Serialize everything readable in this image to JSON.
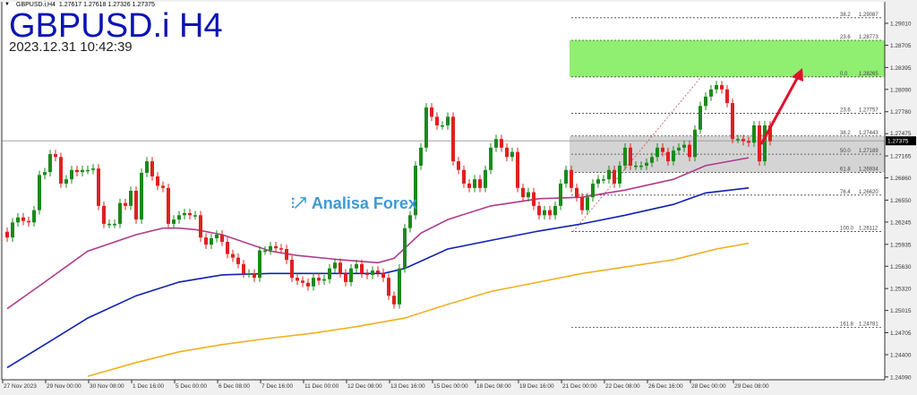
{
  "header": {
    "symbol_line": "GBPUSD.i,H4",
    "ohlc": "1.27617 1.27618 1.27326 1.27375",
    "big_title": "GBPUSD.i H4",
    "datetime": "2023.12.31 10:42:39"
  },
  "watermark": {
    "text": "Analisa Forex",
    "icon": "chart-growth-icon"
  },
  "chart_data": {
    "type": "candlestick",
    "symbol": "GBPUSD.i",
    "timeframe": "H4",
    "ylim": [
      1.2409,
      1.2901
    ],
    "price_axis_labels": [
      "1.29010",
      "1.28705",
      "1.28395",
      "1.28090",
      "1.27780",
      "1.27475",
      "1.27165",
      "1.26860",
      "1.26550",
      "1.26245",
      "1.25935",
      "1.25630",
      "1.25320",
      "1.25015",
      "1.24705",
      "1.24400",
      "1.24090"
    ],
    "time_axis_labels": [
      "27 Nov 2023",
      "29 Nov 00:00",
      "30 Nov 08:00",
      "1 Dec 16:00",
      "5 Dec 00:00",
      "6 Dec 08:00",
      "7 Dec 16:00",
      "11 Dec 00:00",
      "12 Dec 08:00",
      "13 Dec 16:00",
      "15 Dec 00:00",
      "18 Dec 08:00",
      "19 Dec 16:00",
      "21 Dec 00:00",
      "22 Dec 08:00",
      "26 Dec 16:00",
      "28 Dec 00:00",
      "29 Dec 08:00"
    ],
    "current_price": "1.27375",
    "closes": [
      1.2603,
      1.2624,
      1.2631,
      1.2626,
      1.2624,
      1.2641,
      1.269,
      1.2694,
      1.2719,
      1.2715,
      1.2678,
      1.2684,
      1.2697,
      1.2694,
      1.2697,
      1.2697,
      1.2699,
      1.2647,
      1.2622,
      1.2622,
      1.2622,
      1.2651,
      1.2647,
      1.2668,
      1.2628,
      1.2693,
      1.2709,
      1.2688,
      1.2675,
      1.2672,
      1.2622,
      1.2628,
      1.2634,
      1.2637,
      1.2634,
      1.2634,
      1.2603,
      1.2593,
      1.2602,
      1.2607,
      1.2597,
      1.258,
      1.2575,
      1.2566,
      1.2553,
      1.2553,
      1.2547,
      1.2585,
      1.2585,
      1.2591,
      1.2588,
      1.2587,
      1.2572,
      1.2547,
      1.2543,
      1.254,
      1.2535,
      1.2547,
      1.2543,
      1.2545,
      1.256,
      1.2568,
      1.2553,
      1.2541,
      1.256,
      1.2566,
      1.2553,
      1.2551,
      1.2557,
      1.2554,
      1.2547,
      1.2522,
      1.251,
      1.256,
      1.2616,
      1.2634,
      1.2703,
      1.2728,
      1.2784,
      1.2771,
      1.2759,
      1.2759,
      1.2771,
      1.2709,
      1.2697,
      1.2678,
      1.2672,
      1.2684,
      1.2672,
      1.2697,
      1.2728,
      1.274,
      1.2728,
      1.2715,
      1.2722,
      1.2672,
      1.2659,
      1.2666,
      1.2647,
      1.2634,
      1.2641,
      1.2634,
      1.2647,
      1.2678,
      1.2697,
      1.2672,
      1.2659,
      1.2641,
      1.2659,
      1.2678,
      1.2684,
      1.2684,
      1.2697,
      1.2678,
      1.2703,
      1.2728,
      1.2703,
      1.2703,
      1.2703,
      1.2707,
      1.2715,
      1.2728,
      1.2722,
      1.2709,
      1.2724,
      1.2728,
      1.2732,
      1.2715,
      1.2753,
      1.2786,
      1.2799,
      1.2809,
      1.2815,
      1.2809,
      1.279,
      1.274,
      1.274,
      1.2737,
      1.2735,
      1.2759,
      1.2709,
      1.2759,
      1.2737
    ],
    "moving_averages": [
      {
        "color": "#b03a8c",
        "points": [
          [
            0,
            1.2504
          ],
          [
            7,
            1.2541
          ],
          [
            15,
            1.2584
          ],
          [
            24,
            1.2607
          ],
          [
            29,
            1.2616
          ],
          [
            32,
            1.2616
          ],
          [
            35,
            1.2614
          ],
          [
            40,
            1.2607
          ],
          [
            49,
            1.2584
          ],
          [
            54,
            1.2578
          ],
          [
            62,
            1.2572
          ],
          [
            69,
            1.2568
          ],
          [
            72,
            1.2574
          ],
          [
            77,
            1.2609
          ],
          [
            82,
            1.2628
          ],
          [
            90,
            1.2647
          ],
          [
            99,
            1.2657
          ],
          [
            107,
            1.2659
          ],
          [
            115,
            1.2669
          ],
          [
            124,
            1.2684
          ],
          [
            130,
            1.2703
          ],
          [
            138,
            1.2714
          ]
        ]
      },
      {
        "color": "#1020b0",
        "points": [
          [
            0,
            1.2422
          ],
          [
            7,
            1.2454
          ],
          [
            15,
            1.2491
          ],
          [
            24,
            1.2522
          ],
          [
            32,
            1.2541
          ],
          [
            40,
            1.2551
          ],
          [
            49,
            1.2553
          ],
          [
            57,
            1.2553
          ],
          [
            65,
            1.2553
          ],
          [
            70,
            1.2553
          ],
          [
            74,
            1.256
          ],
          [
            82,
            1.2587
          ],
          [
            90,
            1.2599
          ],
          [
            99,
            1.2612
          ],
          [
            107,
            1.2622
          ],
          [
            115,
            1.2634
          ],
          [
            124,
            1.2649
          ],
          [
            130,
            1.2665
          ],
          [
            138,
            1.2672
          ]
        ]
      },
      {
        "color": "#f0b020",
        "points": [
          [
            15,
            1.241
          ],
          [
            24,
            1.2429
          ],
          [
            32,
            1.2444
          ],
          [
            40,
            1.2454
          ],
          [
            49,
            1.2463
          ],
          [
            57,
            1.247
          ],
          [
            65,
            1.2479
          ],
          [
            74,
            1.2491
          ],
          [
            82,
            1.251
          ],
          [
            90,
            1.2528
          ],
          [
            99,
            1.2541
          ],
          [
            107,
            1.2553
          ],
          [
            115,
            1.2562
          ],
          [
            124,
            1.2572
          ],
          [
            132,
            1.2587
          ],
          [
            138,
            1.2595
          ]
        ]
      }
    ],
    "fibonacci_levels": [
      {
        "ratio": "38.2",
        "price": "1.29087"
      },
      {
        "ratio": "23.6",
        "price": "1.28773"
      },
      {
        "ratio": "0.0",
        "price": "1.28265"
      },
      {
        "ratio": "23.6",
        "price": "1.27757"
      },
      {
        "ratio": "38.2",
        "price": "1.27443"
      },
      {
        "ratio": "50.0",
        "price": "1.27189"
      },
      {
        "ratio": "61.8",
        "price": "1.26934"
      },
      {
        "ratio": "76.4",
        "price": "1.26620"
      },
      {
        "ratio": "100.0",
        "price": "1.26112"
      },
      {
        "ratio": "161.8",
        "price": "1.24781"
      }
    ],
    "zones": [
      {
        "name": "target-zone",
        "from": 1.28265,
        "to": 1.28773,
        "color": "#90ee70"
      },
      {
        "name": "support-zone",
        "from": 1.26934,
        "to": 1.27443,
        "color": "#d4d4d4"
      }
    ],
    "colors": {
      "bull": "#1a8a1a",
      "bear": "#e02020",
      "arrow": "#e0102a"
    }
  }
}
